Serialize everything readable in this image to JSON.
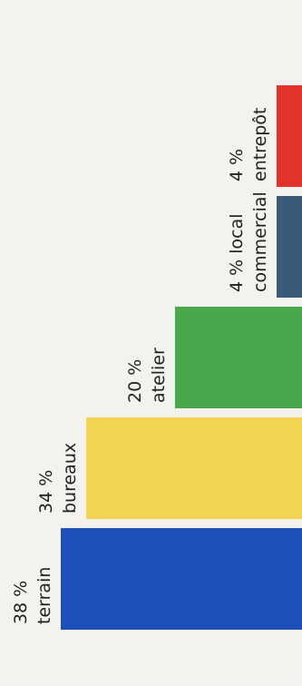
{
  "chart_data": {
    "type": "bar",
    "orientation": "vertical",
    "categories": [
      "terrain",
      "bureaux",
      "atelier",
      "local commercial",
      "entrepôt"
    ],
    "values": [
      38,
      34,
      20,
      4,
      4
    ],
    "colors": [
      "#1f4fb8",
      "#f2d552",
      "#4aa84c",
      "#3a5a78",
      "#e1332c"
    ],
    "labels": [
      [
        "38 %",
        "terrain"
      ],
      [
        "34 %",
        "bureaux"
      ],
      [
        "20 %",
        "atelier"
      ],
      [
        "4 % local",
        "commercial"
      ],
      [
        "4 %",
        "entrepôt"
      ]
    ],
    "title": "",
    "xlabel": "",
    "ylabel": "",
    "grid": false
  }
}
